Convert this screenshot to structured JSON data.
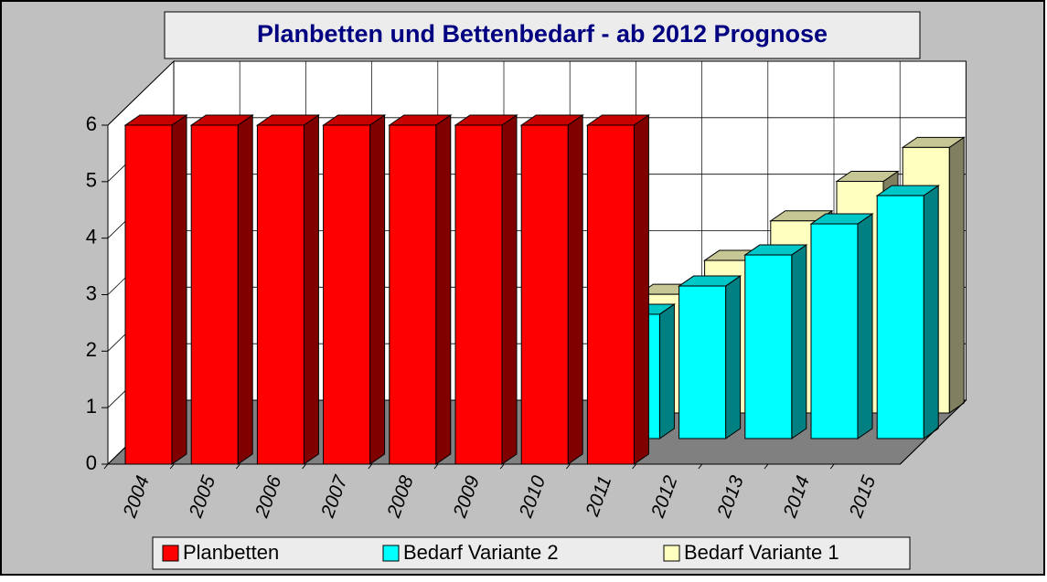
{
  "chart_data": {
    "type": "bar3d",
    "title": "Planbetten und Bettenbedarf - ab 2012 Prognose",
    "categories": [
      "2004",
      "2005",
      "2006",
      "2007",
      "2008",
      "2009",
      "2010",
      "2011",
      "2012",
      "2013",
      "2014",
      "2015"
    ],
    "series": [
      {
        "name": "Planbetten",
        "color": "#ff0000",
        "values": [
          6,
          6,
          6,
          6,
          6,
          6,
          6,
          6,
          null,
          null,
          null,
          null
        ]
      },
      {
        "name": "Bedarf Variante 2",
        "color": "#00ffff",
        "values": [
          null,
          null,
          null,
          null,
          null,
          null,
          null,
          2.2,
          2.7,
          3.25,
          3.8,
          4.3
        ]
      },
      {
        "name": "Bedarf Variante 1",
        "color": "#ffffc0",
        "values": [
          null,
          null,
          null,
          null,
          null,
          null,
          null,
          2.1,
          2.7,
          3.4,
          4.1,
          4.7
        ]
      }
    ],
    "ylim": [
      0,
      6
    ],
    "yticks": [
      0,
      1,
      2,
      3,
      4,
      5,
      6
    ],
    "grid": true,
    "legend": "bottom"
  }
}
